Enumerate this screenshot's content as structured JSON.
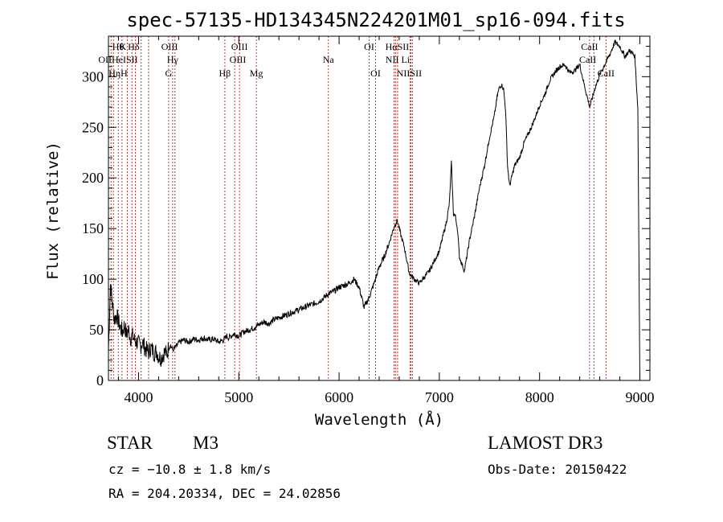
{
  "chart_data": {
    "type": "line",
    "title": "spec-57135-HD134345N224201M01_sp16-094.fits",
    "xlabel": "Wavelength (Å)",
    "ylabel": "Flux (relative)",
    "xlim": [
      3700,
      9100
    ],
    "ylim": [
      0,
      340
    ],
    "xticks": [
      4000,
      5000,
      6000,
      7000,
      8000,
      9000
    ],
    "yticks": [
      0,
      50,
      100,
      150,
      200,
      250,
      300
    ],
    "grid": false,
    "series": [
      {
        "name": "flux",
        "x": [
          3700,
          3720,
          3740,
          3760,
          3780,
          3800,
          3820,
          3840,
          3860,
          3880,
          3900,
          3920,
          3940,
          3960,
          3980,
          4000,
          4020,
          4040,
          4060,
          4080,
          4100,
          4120,
          4140,
          4160,
          4180,
          4200,
          4220,
          4240,
          4260,
          4280,
          4300,
          4320,
          4340,
          4360,
          4380,
          4400,
          4450,
          4500,
          4550,
          4600,
          4650,
          4700,
          4750,
          4800,
          4850,
          4880,
          4900,
          4950,
          5000,
          5050,
          5100,
          5150,
          5200,
          5250,
          5300,
          5350,
          5400,
          5450,
          5500,
          5550,
          5600,
          5650,
          5700,
          5750,
          5800,
          5850,
          5900,
          5950,
          6000,
          6050,
          6100,
          6150,
          6200,
          6250,
          6300,
          6350,
          6400,
          6450,
          6500,
          6550,
          6580,
          6620,
          6650,
          6700,
          6750,
          6800,
          6850,
          6900,
          6950,
          7000,
          7030,
          7060,
          7080,
          7100,
          7120,
          7140,
          7160,
          7180,
          7200,
          7250,
          7300,
          7350,
          7400,
          7450,
          7500,
          7550,
          7580,
          7600,
          7620,
          7640,
          7660,
          7680,
          7700,
          7750,
          7800,
          7850,
          7900,
          7950,
          8000,
          8050,
          8100,
          8150,
          8200,
          8250,
          8300,
          8350,
          8400,
          8450,
          8500,
          8550,
          8600,
          8650,
          8700,
          8750,
          8800,
          8850,
          8900,
          8950,
          8980,
          9000
        ],
        "y": [
          30,
          95,
          75,
          60,
          65,
          58,
          52,
          48,
          55,
          45,
          50,
          42,
          44,
          40,
          38,
          36,
          34,
          38,
          33,
          30,
          28,
          32,
          30,
          27,
          29,
          24,
          22,
          25,
          28,
          26,
          32,
          35,
          30,
          32,
          34,
          37,
          40,
          38,
          41,
          40,
          42,
          40,
          41,
          38,
          40,
          44,
          42,
          46,
          44,
          48,
          50,
          52,
          55,
          58,
          56,
          60,
          62,
          64,
          66,
          68,
          70,
          72,
          74,
          76,
          78,
          82,
          86,
          88,
          92,
          94,
          96,
          100,
          92,
          72,
          82,
          96,
          112,
          122,
          136,
          152,
          158,
          142,
          132,
          106,
          100,
          96,
          102,
          108,
          118,
          128,
          140,
          152,
          162,
          175,
          215,
          165,
          162,
          150,
          122,
          108,
          138,
          162,
          190,
          212,
          240,
          262,
          282,
          290,
          292,
          288,
          268,
          212,
          192,
          212,
          220,
          236,
          246,
          258,
          272,
          282,
          296,
          304,
          310,
          312,
          304,
          306,
          312,
          290,
          270,
          288,
          302,
          312,
          322,
          334,
          330,
          320,
          326,
          320,
          268,
          0
        ]
      }
    ],
    "line_markers": {
      "x": [
        3726,
        3750,
        3798,
        3835,
        3889,
        3934,
        3969,
        4026,
        4101,
        4300,
        4340,
        4363,
        4861,
        4959,
        5007,
        5175,
        5893,
        6300,
        6364,
        6548,
        6563,
        6584,
        6708,
        6717,
        6731,
        8498,
        8542,
        8662
      ],
      "top_labels": [
        {
          "x": 3750,
          "row": 1,
          "text": "Hθ"
        },
        {
          "x": 3844,
          "row": 1,
          "text": "K"
        },
        {
          "x": 3952,
          "row": 1,
          "text": "Hδ"
        },
        {
          "x": 4310,
          "row": 1,
          "text": "OIII"
        },
        {
          "x": 5007,
          "row": 1,
          "text": "OIII"
        },
        {
          "x": 6300,
          "row": 1,
          "text": "OI"
        },
        {
          "x": 6580,
          "row": 1,
          "text": "HαSII"
        },
        {
          "x": 8498,
          "row": 1,
          "text": "CaII"
        },
        {
          "x": 3750,
          "row": 2,
          "text": "OIIHeISII"
        },
        {
          "x": 4340,
          "row": 2,
          "text": "Hγ"
        },
        {
          "x": 4990,
          "row": 2,
          "text": "OIII"
        },
        {
          "x": 5893,
          "row": 2,
          "text": "Na"
        },
        {
          "x": 6584,
          "row": 2,
          "text": "NII Li"
        },
        {
          "x": 8480,
          "row": 2,
          "text": "CaII"
        },
        {
          "x": 3740,
          "row": 3,
          "text": "HηH"
        },
        {
          "x": 4300,
          "row": 3,
          "text": "G"
        },
        {
          "x": 4861,
          "row": 3,
          "text": "Hβ"
        },
        {
          "x": 5175,
          "row": 3,
          "text": "Mg"
        },
        {
          "x": 6364,
          "row": 3,
          "text": "OI"
        },
        {
          "x": 6700,
          "row": 3,
          "text": "NIISII"
        },
        {
          "x": 8662,
          "row": 3,
          "text": "CaII"
        }
      ]
    }
  },
  "info": {
    "object_class": "STAR",
    "subclass": "M3",
    "survey": "LAMOST DR3",
    "redshift": "cz = −10.8 ± 1.8 km/s",
    "obs_date": "Obs-Date: 20150422",
    "coords": "RA = 204.20334, DEC =  24.02856"
  }
}
